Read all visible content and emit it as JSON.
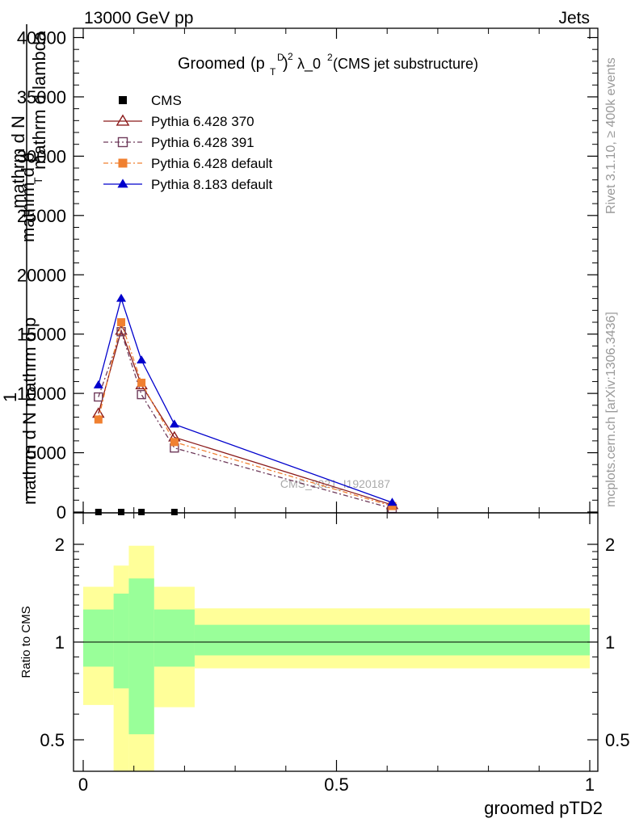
{
  "header": {
    "left": "13000 GeV pp",
    "right": "Jets"
  },
  "side": {
    "rivet": "Rivet 3.1.10, ≥ 400k events",
    "mcplots": "mcplots.cern.ch [arXiv:1306.3436]"
  },
  "watermark": "CMS_2021_I1920187",
  "main_title": {
    "prefix": "Groomed",
    "sub_T": "T",
    "sup_D": "D",
    "sup_2": "2",
    "lambda": "λ_0",
    "suffix": " (CMS jet substructure)"
  },
  "ylabel_top": {
    "one": "1",
    "numerator": "mathrm d N",
    "denominator_line1": "mathrm d N mathrm d p",
    "denominator_line2": "mathrm d p",
    "t_sub": "T",
    "tail": "mathrm d lambda"
  },
  "xlabel": "groomed pTD2",
  "ratio_ylabel": "Ratio to CMS",
  "legend": [
    {
      "label": "CMS",
      "color": "#000000",
      "marker": "square-filled",
      "dash": ""
    },
    {
      "label": "Pythia 6.428 370",
      "color": "#8b1a1a",
      "marker": "triangle-open",
      "dash": ""
    },
    {
      "label": "Pythia 6.428 391",
      "color": "#6e3a5a",
      "marker": "square-open",
      "dash": "6,3,2,3"
    },
    {
      "label": "Pythia 6.428 default",
      "color": "#f08030",
      "marker": "square-filled",
      "dash": "6,3,2,3"
    },
    {
      "label": "Pythia 8.183 default",
      "color": "#0000cc",
      "marker": "triangle-filled",
      "dash": ""
    }
  ],
  "chart_data": [
    {
      "type": "line",
      "title": "Groomed (p_T^D)^2 λ_0^2 (CMS jet substructure)",
      "xlabel": "groomed pTD2",
      "ylabel": "1/N dN/dp_T dλ",
      "xlim": [
        0,
        1
      ],
      "ylim": [
        0,
        40000
      ],
      "yticks": [
        0,
        5000,
        10000,
        15000,
        20000,
        25000,
        30000,
        35000,
        40000
      ],
      "ytick_labels": [
        "0",
        "5000",
        "10000",
        "15000",
        "20000",
        "25000",
        "30000",
        "35000",
        "40000"
      ],
      "series": [
        {
          "name": "CMS",
          "x": [
            0.03,
            0.075,
            0.115,
            0.18
          ],
          "y": [
            0,
            0,
            0,
            0
          ]
        },
        {
          "name": "Pythia 6.428 370",
          "x": [
            0.03,
            0.075,
            0.115,
            0.18,
            0.61
          ],
          "y": [
            8300,
            15300,
            10700,
            6300,
            600
          ]
        },
        {
          "name": "Pythia 6.428 391",
          "x": [
            0.03,
            0.075,
            0.115,
            0.18,
            0.61
          ],
          "y": [
            9700,
            15200,
            9900,
            5400,
            300
          ]
        },
        {
          "name": "Pythia 6.428 default",
          "x": [
            0.03,
            0.075,
            0.115,
            0.18,
            0.61
          ],
          "y": [
            7800,
            16000,
            10900,
            5900,
            500
          ]
        },
        {
          "name": "Pythia 8.183 default",
          "x": [
            0.03,
            0.075,
            0.115,
            0.18,
            0.61
          ],
          "y": [
            10700,
            18000,
            12800,
            7400,
            800
          ]
        }
      ]
    },
    {
      "type": "area",
      "title": "Ratio to CMS",
      "xlabel": "groomed pTD2",
      "ylabel": "Ratio to CMS",
      "xlim": [
        0,
        1
      ],
      "ylim": [
        0.4,
        2.3
      ],
      "yticks": [
        0.5,
        1,
        2
      ],
      "ytick_labels": [
        "0.5",
        "1",
        "2"
      ],
      "xticks": [
        0,
        0.5,
        1
      ],
      "xtick_labels": [
        "0",
        "0.5",
        "1"
      ],
      "reference": 1,
      "bins": [
        {
          "x0": 0.0,
          "x1": 0.06,
          "inner": [
            0.84,
            1.26
          ],
          "outer": [
            0.64,
            1.48
          ]
        },
        {
          "x0": 0.06,
          "x1": 0.09,
          "inner": [
            0.72,
            1.41
          ],
          "outer": [
            0.4,
            1.72
          ]
        },
        {
          "x0": 0.09,
          "x1": 0.14,
          "inner": [
            0.52,
            1.57
          ],
          "outer": [
            0.4,
            1.98
          ]
        },
        {
          "x0": 0.14,
          "x1": 0.22,
          "inner": [
            0.84,
            1.26
          ],
          "outer": [
            0.63,
            1.48
          ]
        },
        {
          "x0": 0.22,
          "x1": 1.0,
          "inner": [
            0.91,
            1.13
          ],
          "outer": [
            0.83,
            1.27
          ]
        }
      ]
    }
  ]
}
